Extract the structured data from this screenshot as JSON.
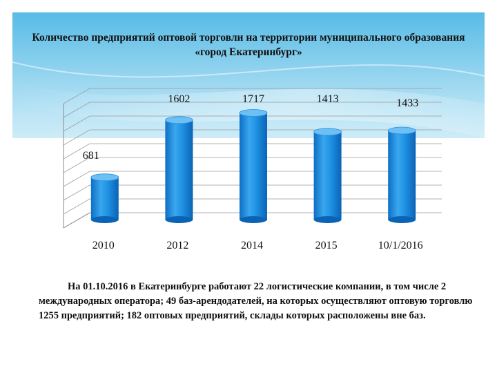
{
  "chart_data": {
    "type": "bar",
    "title": "Количество предприятий оптовой торговли на территории муниципального образования «город Екатеринбург»",
    "categories": [
      "2010",
      "2012",
      "2014",
      "2015",
      "10/1/2016"
    ],
    "values": [
      681,
      1602,
      1717,
      1413,
      1433
    ],
    "data_labels": [
      "681",
      "1602",
      "1717",
      "1413",
      "1433"
    ],
    "xlabel": "",
    "ylabel": "",
    "ylim": [
      0,
      2000
    ],
    "grid": true,
    "legend": "none",
    "bar_color": "#1a8fe0"
  },
  "caption": "На 01.10.2016 в Екатеринбурге работают 22 логистические компании, в том числе 2 международных оператора; 49 баз-арендодателей, на которых осуществляют оптовую торговлю 1255 предприятий; 182 оптовых предприятий, склады которых расположены вне баз.",
  "colors": {
    "header_gradient_top": "#5bbfe6",
    "header_gradient_bottom": "#ffffff",
    "bar": "#1a8fe0",
    "bar_top": "#6cc0f5"
  }
}
